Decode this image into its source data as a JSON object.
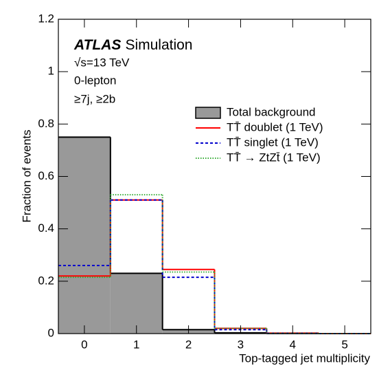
{
  "chart_data": {
    "type": "step",
    "xlabel": "Top-tagged jet multiplicity",
    "ylabel": "Fraction of events",
    "categories": [
      "0",
      "1",
      "2",
      "3",
      "4",
      "5"
    ],
    "ylim": [
      0,
      1.2
    ],
    "yticks": [
      0,
      0.2,
      0.4,
      0.6,
      0.8,
      1,
      1.2
    ],
    "annotations": {
      "experiment": "ATLAS",
      "label": "Simulation",
      "lines": [
        "√s=13 TeV",
        "0-lepton",
        "≥7j, ≥2b"
      ]
    },
    "series": [
      {
        "name": "Total background",
        "color": "#999999",
        "edgecolor": "#000000",
        "style": "filled",
        "values": [
          0.75,
          0.23,
          0.015,
          0.003,
          0.0005,
          0
        ]
      },
      {
        "name": "TT̄ doublet (1 TeV)",
        "color": "#ff0000",
        "style": "solid",
        "values": [
          0.22,
          0.51,
          0.245,
          0.02,
          0.002,
          0
        ]
      },
      {
        "name": "TT̄ singlet (1 TeV)",
        "color": "#0000cc",
        "style": "dashed",
        "values": [
          0.26,
          0.51,
          0.215,
          0.015,
          0.001,
          0
        ]
      },
      {
        "name": "TT̄ → ZtZt̄ (1 TeV)",
        "color": "#33aa33",
        "style": "dotted",
        "values": [
          0.215,
          0.53,
          0.235,
          0.02,
          0.001,
          0
        ]
      }
    ]
  }
}
